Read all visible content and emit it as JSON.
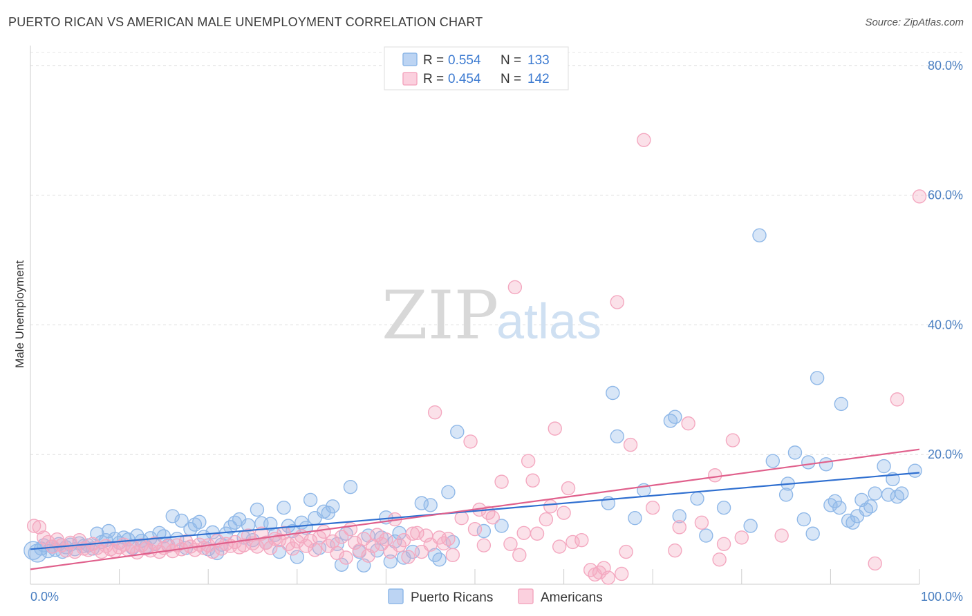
{
  "title": "PUERTO RICAN VS AMERICAN MALE UNEMPLOYMENT CORRELATION CHART",
  "source": "Source: ZipAtlas.com",
  "watermark": {
    "zip": "ZIP",
    "atlas": "atlas"
  },
  "chart_data": {
    "type": "scatter",
    "xlabel": "",
    "ylabel": "Male Unemployment",
    "xlim": [
      0,
      100
    ],
    "ylim": [
      0,
      82
    ],
    "x_tick_labels": [
      "0.0%",
      "100.0%"
    ],
    "y_ticks": [
      20,
      40,
      60,
      80
    ],
    "y_tick_labels": [
      "20.0%",
      "40.0%",
      "60.0%",
      "80.0%"
    ],
    "grid": true,
    "legend_position": "top-center",
    "legend": [
      {
        "r_label": "R = ",
        "r_value": "0.554",
        "n_label": "N = ",
        "n_value": "133"
      },
      {
        "r_label": "R = ",
        "r_value": "0.454",
        "n_label": "N = ",
        "n_value": "142"
      }
    ],
    "series": [
      {
        "name": "Puerto Ricans",
        "color": "#8fb8e8",
        "line_color": "#2f6fd0",
        "trend": {
          "x0": 0,
          "y0": 5.4,
          "x1": 100,
          "y1": 17.2
        },
        "points": [
          [
            0.3,
            5.2
          ],
          [
            0.8,
            4.8
          ],
          [
            1.2,
            5.5
          ],
          [
            1.5,
            6.0
          ],
          [
            2.0,
            5.1
          ],
          [
            2.4,
            5.8
          ],
          [
            2.8,
            5.3
          ],
          [
            3.2,
            6.2
          ],
          [
            3.6,
            5.0
          ],
          [
            4.0,
            5.7
          ],
          [
            4.5,
            6.1
          ],
          [
            5.0,
            5.4
          ],
          [
            5.5,
            6.3
          ],
          [
            6.0,
            5.9
          ],
          [
            6.5,
            6.0
          ],
          [
            7.0,
            5.5
          ],
          [
            7.5,
            7.8
          ],
          [
            8.0,
            6.5
          ],
          [
            8.5,
            6.8
          ],
          [
            8.8,
            8.2
          ],
          [
            9.5,
            7.0
          ],
          [
            10.0,
            6.4
          ],
          [
            10.5,
            7.2
          ],
          [
            11.0,
            6.9
          ],
          [
            11.5,
            5.6
          ],
          [
            12.0,
            7.5
          ],
          [
            12.5,
            6.7
          ],
          [
            13.0,
            5.8
          ],
          [
            13.5,
            7.1
          ],
          [
            14.0,
            6.2
          ],
          [
            14.5,
            7.9
          ],
          [
            15.0,
            7.4
          ],
          [
            15.5,
            6.0
          ],
          [
            16.0,
            10.5
          ],
          [
            16.5,
            7.0
          ],
          [
            17.0,
            9.8
          ],
          [
            17.5,
            5.6
          ],
          [
            18.0,
            8.5
          ],
          [
            18.5,
            9.2
          ],
          [
            19.0,
            9.6
          ],
          [
            19.5,
            7.3
          ],
          [
            20.0,
            5.4
          ],
          [
            20.5,
            8.0
          ],
          [
            21.0,
            4.8
          ],
          [
            21.5,
            6.1
          ],
          [
            22.0,
            7.8
          ],
          [
            22.5,
            8.8
          ],
          [
            23.0,
            9.5
          ],
          [
            23.5,
            10.0
          ],
          [
            24.0,
            7.2
          ],
          [
            24.5,
            9.1
          ],
          [
            25.0,
            6.8
          ],
          [
            25.5,
            11.5
          ],
          [
            26.0,
            9.4
          ],
          [
            26.5,
            6.4
          ],
          [
            27.0,
            9.3
          ],
          [
            27.5,
            7.6
          ],
          [
            28.0,
            5.0
          ],
          [
            28.5,
            11.8
          ],
          [
            29.0,
            9.0
          ],
          [
            29.5,
            8.2
          ],
          [
            30.0,
            4.2
          ],
          [
            30.5,
            9.5
          ],
          [
            31.0,
            8.7
          ],
          [
            31.5,
            13.0
          ],
          [
            32.0,
            10.2
          ],
          [
            32.5,
            5.6
          ],
          [
            33.0,
            11.2
          ],
          [
            33.5,
            11.0
          ],
          [
            34.0,
            12.0
          ],
          [
            34.5,
            6.2
          ],
          [
            35.0,
            3.0
          ],
          [
            35.5,
            7.8
          ],
          [
            36.0,
            15.0
          ],
          [
            37.0,
            5.0
          ],
          [
            37.5,
            2.9
          ],
          [
            38.0,
            7.5
          ],
          [
            39.0,
            5.2
          ],
          [
            39.5,
            7.2
          ],
          [
            40.0,
            10.3
          ],
          [
            40.5,
            3.5
          ],
          [
            41.0,
            6.6
          ],
          [
            41.5,
            7.9
          ],
          [
            42.0,
            4.1
          ],
          [
            43.0,
            5.0
          ],
          [
            44.0,
            12.5
          ],
          [
            45.0,
            12.2
          ],
          [
            45.5,
            4.5
          ],
          [
            46.0,
            3.8
          ],
          [
            47.0,
            14.2
          ],
          [
            47.5,
            6.5
          ],
          [
            48.0,
            23.5
          ],
          [
            51.0,
            8.2
          ],
          [
            53.0,
            9.0
          ],
          [
            65.0,
            12.5
          ],
          [
            65.5,
            29.5
          ],
          [
            66.0,
            22.8
          ],
          [
            68.0,
            10.2
          ],
          [
            69.0,
            14.5
          ],
          [
            72.0,
            25.2
          ],
          [
            72.5,
            25.8
          ],
          [
            73.0,
            10.5
          ],
          [
            75.0,
            13.2
          ],
          [
            76.0,
            7.5
          ],
          [
            78.0,
            11.8
          ],
          [
            81.0,
            9.0
          ],
          [
            82.0,
            53.8
          ],
          [
            83.5,
            19.0
          ],
          [
            85.0,
            13.8
          ],
          [
            85.2,
            15.5
          ],
          [
            86.0,
            20.3
          ],
          [
            87.0,
            10.0
          ],
          [
            87.5,
            18.8
          ],
          [
            88.0,
            7.8
          ],
          [
            88.5,
            31.8
          ],
          [
            89.5,
            18.5
          ],
          [
            90.0,
            12.2
          ],
          [
            90.5,
            12.8
          ],
          [
            91.0,
            11.8
          ],
          [
            91.2,
            27.8
          ],
          [
            92.0,
            9.8
          ],
          [
            92.5,
            9.5
          ],
          [
            93.0,
            10.5
          ],
          [
            93.5,
            13.0
          ],
          [
            94.0,
            11.5
          ],
          [
            94.5,
            12.0
          ],
          [
            95.0,
            14.0
          ],
          [
            96.0,
            18.2
          ],
          [
            96.5,
            13.8
          ],
          [
            97.0,
            16.2
          ],
          [
            97.5,
            13.5
          ],
          [
            98.0,
            14.0
          ],
          [
            99.5,
            17.5
          ]
        ]
      },
      {
        "name": "Americans",
        "color": "#f4a8c0",
        "line_color": "#e0608c",
        "trend": {
          "x0": 0,
          "y0": 2.3,
          "x1": 100,
          "y1": 20.8
        },
        "points": [
          [
            0.4,
            9.0
          ],
          [
            1.0,
            8.8
          ],
          [
            1.5,
            7.2
          ],
          [
            2.0,
            6.5
          ],
          [
            2.5,
            5.8
          ],
          [
            3.0,
            6.9
          ],
          [
            3.5,
            6.0
          ],
          [
            4.0,
            5.2
          ],
          [
            4.5,
            6.4
          ],
          [
            5.0,
            5.0
          ],
          [
            5.5,
            6.8
          ],
          [
            6.0,
            5.5
          ],
          [
            6.5,
            5.3
          ],
          [
            7.0,
            6.2
          ],
          [
            7.5,
            5.6
          ],
          [
            8.0,
            5.0
          ],
          [
            8.5,
            5.9
          ],
          [
            9.0,
            5.4
          ],
          [
            9.5,
            5.1
          ],
          [
            10.0,
            5.7
          ],
          [
            10.5,
            6.1
          ],
          [
            11.0,
            5.3
          ],
          [
            11.5,
            5.8
          ],
          [
            12.0,
            4.9
          ],
          [
            12.5,
            6.0
          ],
          [
            13.0,
            5.5
          ],
          [
            13.5,
            5.2
          ],
          [
            14.0,
            6.3
          ],
          [
            14.5,
            5.0
          ],
          [
            15.0,
            5.6
          ],
          [
            15.5,
            5.9
          ],
          [
            16.0,
            5.1
          ],
          [
            16.5,
            6.0
          ],
          [
            17.0,
            5.4
          ],
          [
            17.5,
            6.6
          ],
          [
            18.0,
            5.8
          ],
          [
            18.5,
            5.3
          ],
          [
            19.0,
            6.1
          ],
          [
            19.5,
            5.6
          ],
          [
            20.0,
            6.0
          ],
          [
            20.5,
            5.0
          ],
          [
            21.0,
            6.7
          ],
          [
            21.5,
            5.5
          ],
          [
            22.0,
            6.2
          ],
          [
            22.5,
            5.9
          ],
          [
            23.0,
            6.5
          ],
          [
            23.5,
            5.7
          ],
          [
            24.0,
            6.0
          ],
          [
            24.5,
            7.5
          ],
          [
            25.0,
            6.3
          ],
          [
            25.5,
            5.8
          ],
          [
            26.0,
            7.8
          ],
          [
            26.5,
            6.4
          ],
          [
            27.0,
            5.6
          ],
          [
            27.5,
            7.0
          ],
          [
            28.0,
            6.8
          ],
          [
            28.5,
            7.9
          ],
          [
            29.0,
            6.2
          ],
          [
            29.5,
            5.5
          ],
          [
            30.0,
            6.6
          ],
          [
            30.5,
            7.4
          ],
          [
            31.0,
            5.9
          ],
          [
            31.5,
            6.7
          ],
          [
            32.0,
            5.3
          ],
          [
            32.5,
            7.2
          ],
          [
            33.0,
            8.1
          ],
          [
            33.5,
            5.9
          ],
          [
            34.0,
            6.6
          ],
          [
            34.5,
            4.8
          ],
          [
            35.0,
            7.3
          ],
          [
            35.5,
            4.1
          ],
          [
            36.0,
            8.5
          ],
          [
            36.5,
            6.4
          ],
          [
            37.0,
            5.2
          ],
          [
            37.5,
            7.0
          ],
          [
            38.0,
            4.4
          ],
          [
            38.5,
            5.9
          ],
          [
            39.0,
            7.6
          ],
          [
            39.5,
            6.2
          ],
          [
            40.0,
            6.9
          ],
          [
            40.5,
            5.0
          ],
          [
            41.0,
            10.0
          ],
          [
            41.5,
            6.0
          ],
          [
            42.0,
            6.8
          ],
          [
            42.5,
            4.2
          ],
          [
            43.0,
            7.8
          ],
          [
            43.5,
            7.9
          ],
          [
            44.0,
            5.0
          ],
          [
            44.5,
            7.5
          ],
          [
            45.0,
            6.1
          ],
          [
            45.5,
            26.5
          ],
          [
            46.0,
            7.2
          ],
          [
            46.5,
            6.3
          ],
          [
            47.0,
            7.0
          ],
          [
            47.5,
            4.5
          ],
          [
            48.5,
            10.2
          ],
          [
            49.5,
            22.0
          ],
          [
            50.0,
            8.5
          ],
          [
            50.5,
            11.5
          ],
          [
            51.0,
            6.0
          ],
          [
            51.5,
            11.0
          ],
          [
            52.0,
            10.3
          ],
          [
            53.0,
            15.8
          ],
          [
            54.0,
            6.2
          ],
          [
            54.5,
            45.8
          ],
          [
            55.0,
            4.5
          ],
          [
            55.5,
            7.9
          ],
          [
            56.0,
            19.0
          ],
          [
            56.5,
            16.0
          ],
          [
            57.0,
            7.8
          ],
          [
            58.0,
            10.0
          ],
          [
            58.5,
            12.0
          ],
          [
            59.0,
            24.0
          ],
          [
            59.5,
            5.8
          ],
          [
            60.0,
            11.0
          ],
          [
            60.5,
            14.8
          ],
          [
            61.0,
            6.5
          ],
          [
            62.0,
            6.8
          ],
          [
            63.0,
            2.2
          ],
          [
            63.5,
            1.5
          ],
          [
            64.0,
            1.8
          ],
          [
            64.5,
            2.5
          ],
          [
            65.0,
            1.0
          ],
          [
            66.0,
            43.5
          ],
          [
            66.5,
            1.6
          ],
          [
            67.0,
            5.0
          ],
          [
            67.5,
            21.5
          ],
          [
            69.0,
            68.5
          ],
          [
            70.0,
            11.8
          ],
          [
            72.5,
            5.2
          ],
          [
            73.0,
            8.8
          ],
          [
            74.0,
            24.8
          ],
          [
            75.5,
            9.5
          ],
          [
            77.0,
            16.8
          ],
          [
            77.5,
            3.8
          ],
          [
            78.0,
            6.2
          ],
          [
            79.0,
            22.2
          ],
          [
            80.0,
            7.2
          ],
          [
            84.5,
            7.5
          ],
          [
            95.0,
            3.2
          ],
          [
            97.5,
            28.5
          ],
          [
            100.0,
            59.8
          ]
        ]
      }
    ]
  }
}
